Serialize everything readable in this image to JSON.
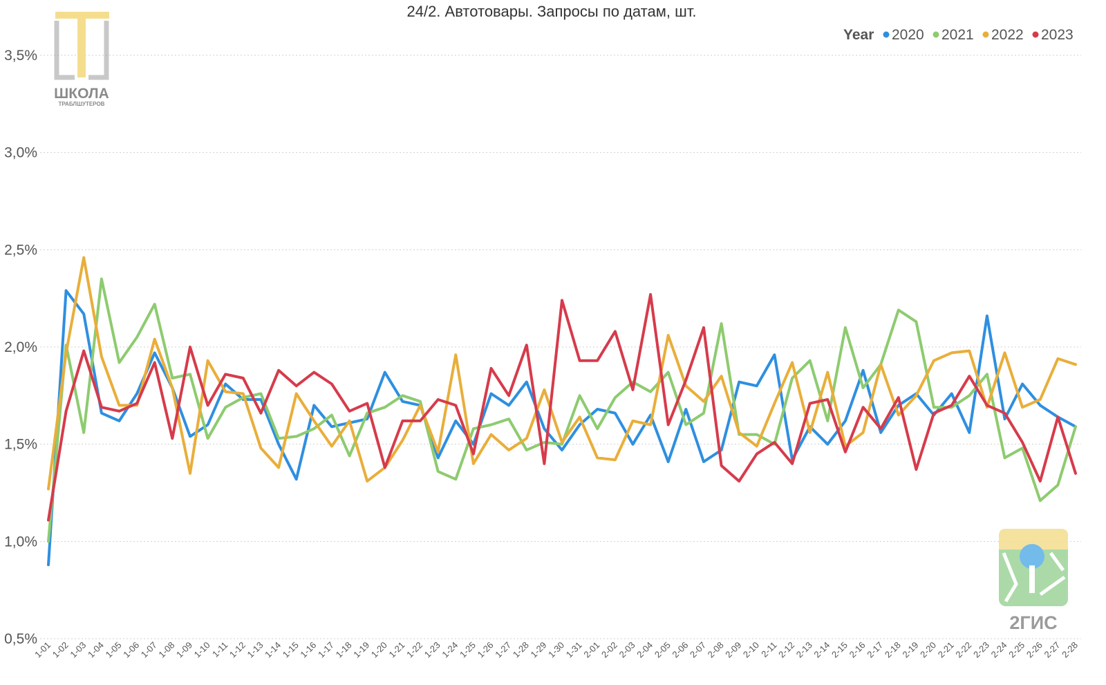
{
  "chart_data": {
    "type": "line",
    "title": "24/2. Автотовары. Запросы по датам, шт.",
    "legend_title": "Year",
    "legend_position": "top-right",
    "grid": true,
    "ylim": [
      0.5,
      3.5
    ],
    "yticks": [
      {
        "value": 0.5,
        "label": "0,5%"
      },
      {
        "value": 1.0,
        "label": "1,0%"
      },
      {
        "value": 1.5,
        "label": "1,5%"
      },
      {
        "value": 2.0,
        "label": "2,0%"
      },
      {
        "value": 2.5,
        "label": "2,5%"
      },
      {
        "value": 3.0,
        "label": "3,0%"
      },
      {
        "value": 3.5,
        "label": "3,5%"
      }
    ],
    "categories": [
      "1-01",
      "1-02",
      "1-03",
      "1-04",
      "1-05",
      "1-06",
      "1-07",
      "1-08",
      "1-09",
      "1-10",
      "1-11",
      "1-12",
      "1-13",
      "1-14",
      "1-15",
      "1-16",
      "1-17",
      "1-18",
      "1-19",
      "1-20",
      "1-21",
      "1-22",
      "1-23",
      "1-24",
      "1-25",
      "1-26",
      "1-27",
      "1-28",
      "1-29",
      "1-30",
      "1-31",
      "2-01",
      "2-02",
      "2-03",
      "2-04",
      "2-05",
      "2-06",
      "2-07",
      "2-08",
      "2-09",
      "2-10",
      "2-11",
      "2-12",
      "2-13",
      "2-14",
      "2-15",
      "2-16",
      "2-17",
      "2-18",
      "2-19",
      "2-20",
      "2-21",
      "2-22",
      "2-23",
      "2-24",
      "2-25",
      "2-26",
      "2-27",
      "2-28"
    ],
    "series": [
      {
        "name": "2020",
        "color": "#2E8FE0",
        "values": [
          0.88,
          2.29,
          2.17,
          1.66,
          1.62,
          1.76,
          1.97,
          1.79,
          1.54,
          1.6,
          1.81,
          1.73,
          1.73,
          1.5,
          1.32,
          1.7,
          1.59,
          1.61,
          1.63,
          1.87,
          1.72,
          1.7,
          1.43,
          1.62,
          1.5,
          1.76,
          1.7,
          1.82,
          1.58,
          1.47,
          1.6,
          1.68,
          1.66,
          1.5,
          1.65,
          1.41,
          1.68,
          1.41,
          1.47,
          1.82,
          1.8,
          1.96,
          1.42,
          1.59,
          1.5,
          1.62,
          1.88,
          1.56,
          1.7,
          1.76,
          1.65,
          1.76,
          1.56,
          2.16,
          1.63,
          1.81,
          1.7,
          1.64,
          1.59
        ]
      },
      {
        "name": "2021",
        "color": "#8DCB6F",
        "values": [
          1.0,
          2.01,
          1.56,
          2.35,
          1.92,
          2.05,
          2.22,
          1.84,
          1.86,
          1.53,
          1.69,
          1.74,
          1.76,
          1.53,
          1.54,
          1.58,
          1.65,
          1.44,
          1.66,
          1.69,
          1.75,
          1.72,
          1.36,
          1.32,
          1.58,
          1.6,
          1.63,
          1.47,
          1.51,
          1.5,
          1.75,
          1.58,
          1.74,
          1.82,
          1.77,
          1.87,
          1.6,
          1.66,
          2.12,
          1.55,
          1.55,
          1.5,
          1.84,
          1.93,
          1.62,
          2.1,
          1.79,
          1.91,
          2.19,
          2.13,
          1.69,
          1.69,
          1.75,
          1.86,
          1.43,
          1.48,
          1.21,
          1.29,
          1.59
        ]
      },
      {
        "name": "2022",
        "color": "#E9AE3A",
        "values": [
          1.27,
          1.97,
          2.46,
          1.95,
          1.7,
          1.7,
          2.04,
          1.79,
          1.35,
          1.93,
          1.77,
          1.76,
          1.48,
          1.38,
          1.76,
          1.62,
          1.49,
          1.62,
          1.31,
          1.38,
          1.52,
          1.7,
          1.46,
          1.96,
          1.4,
          1.55,
          1.47,
          1.53,
          1.78,
          1.51,
          1.64,
          1.43,
          1.42,
          1.62,
          1.6,
          2.06,
          1.8,
          1.72,
          1.85,
          1.56,
          1.49,
          1.71,
          1.92,
          1.56,
          1.87,
          1.49,
          1.56,
          1.91,
          1.65,
          1.75,
          1.93,
          1.97,
          1.98,
          1.69,
          1.97,
          1.69,
          1.73,
          1.94,
          1.91
        ]
      },
      {
        "name": "2023",
        "color": "#D63B4B",
        "values": [
          1.11,
          1.67,
          1.98,
          1.69,
          1.67,
          1.71,
          1.92,
          1.53,
          2.0,
          1.7,
          1.86,
          1.84,
          1.66,
          1.88,
          1.8,
          1.87,
          1.81,
          1.67,
          1.71,
          1.38,
          1.62,
          1.62,
          1.73,
          1.7,
          1.45,
          1.89,
          1.75,
          2.01,
          1.4,
          2.24,
          1.93,
          1.93,
          2.08,
          1.78,
          2.27,
          1.6,
          1.83,
          2.1,
          1.39,
          1.31,
          1.45,
          1.51,
          1.4,
          1.71,
          1.73,
          1.46,
          1.69,
          1.58,
          1.74,
          1.37,
          1.66,
          1.7,
          1.85,
          1.7,
          1.66,
          1.51,
          1.31,
          1.64,
          1.35
        ]
      }
    ]
  },
  "logos": {
    "school_title": "ШКОЛА",
    "school_subtitle": "ТРАБЛШУТЕРОВ",
    "gis_label": "2ГИС"
  }
}
